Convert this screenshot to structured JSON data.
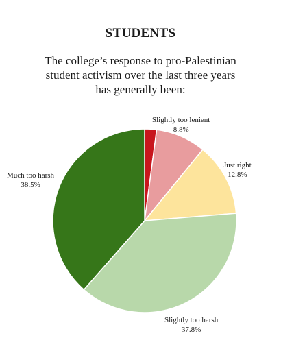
{
  "chart_data": {
    "type": "pie",
    "title": "STUDENTS",
    "subtitle_lines": [
      "The college’s response to pro-Palestinian",
      "student activism over the last three years",
      "has generally been:"
    ],
    "slices": [
      {
        "name": "",
        "value": 2.1,
        "color": "#c8161d",
        "label": "",
        "pct_text": ""
      },
      {
        "name": "Slightly too lenient",
        "value": 8.8,
        "color": "#e89c9e",
        "label": "Slightly too lenient",
        "pct_text": "8.8%"
      },
      {
        "name": "Just right",
        "value": 12.8,
        "color": "#fde49c",
        "label": "Just right",
        "pct_text": "12.8%"
      },
      {
        "name": "Slightly too harsh",
        "value": 37.8,
        "color": "#b8d8aa",
        "label": "Slightly too harsh",
        "pct_text": "37.8%"
      },
      {
        "name": "Much too harsh",
        "value": 38.5,
        "color": "#367619",
        "label": "Much too harsh",
        "pct_text": "38.5%"
      }
    ],
    "start": "12 o'clock",
    "direction": "clockwise"
  }
}
